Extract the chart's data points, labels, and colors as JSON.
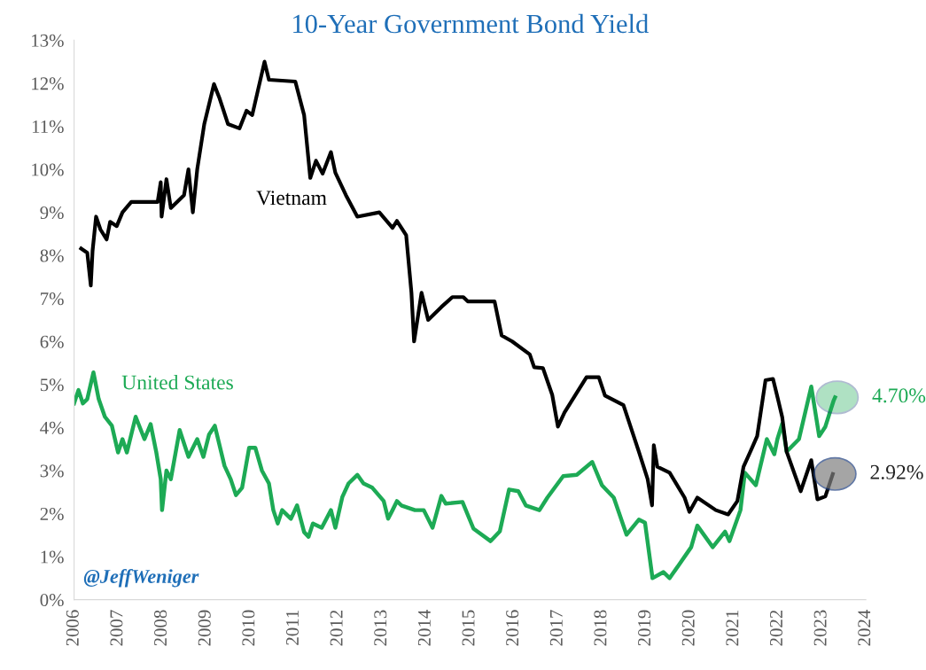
{
  "chart_data": {
    "type": "line",
    "title": "10-Year Government Bond Yield",
    "xlim": [
      2006,
      2024
    ],
    "xticks": [
      2006,
      2007,
      2008,
      2009,
      2010,
      2011,
      2012,
      2013,
      2014,
      2015,
      2016,
      2017,
      2018,
      2019,
      2020,
      2021,
      2022,
      2023,
      2024
    ],
    "ylim": [
      0,
      13
    ],
    "yticks": [
      {
        "value": 0,
        "label": "0%"
      },
      {
        "value": 1,
        "label": "1%"
      },
      {
        "value": 2,
        "label": "2%"
      },
      {
        "value": 3,
        "label": "3%"
      },
      {
        "value": 4,
        "label": "4%"
      },
      {
        "value": 5,
        "label": "5%"
      },
      {
        "value": 6,
        "label": "6%"
      },
      {
        "value": 7,
        "label": "7%"
      },
      {
        "value": 8,
        "label": "8%"
      },
      {
        "value": 9,
        "label": "9%"
      },
      {
        "value": 10,
        "label": "10%"
      },
      {
        "value": 11,
        "label": "11%"
      },
      {
        "value": 12,
        "label": "12%"
      },
      {
        "value": 13,
        "label": "13%"
      }
    ],
    "grid": false,
    "legend": false,
    "marker": "none",
    "line_style": "solid",
    "series": [
      {
        "name": "Vietnam",
        "color": "#000000",
        "x": [
          2006.16,
          2006.3,
          2006.38,
          2006.42,
          2006.5,
          2006.6,
          2006.74,
          2006.82,
          2006.97,
          2007.1,
          2007.3,
          2007.9,
          2007.97,
          2007.99,
          2008.1,
          2008.2,
          2008.5,
          2008.6,
          2008.7,
          2008.8,
          2008.96,
          2009.18,
          2009.3,
          2009.5,
          2009.76,
          2009.92,
          2010.05,
          2010.33,
          2010.43,
          2011.03,
          2011.23,
          2011.37,
          2011.5,
          2011.65,
          2011.84,
          2011.94,
          2012.18,
          2012.44,
          2012.94,
          2013.24,
          2013.34,
          2013.55,
          2013.67,
          2013.73,
          2013.9,
          2014.05,
          2014.35,
          2014.6,
          2014.85,
          2014.95,
          2015.56,
          2015.72,
          2015.96,
          2016.36,
          2016.46,
          2016.66,
          2016.87,
          2017.0,
          2017.15,
          2017.65,
          2017.93,
          2018.07,
          2018.49,
          2018.84,
          2019.04,
          2019.14,
          2019.18,
          2019.26,
          2019.54,
          2019.88,
          2019.99,
          2020.17,
          2020.59,
          2020.87,
          2021.08,
          2021.22,
          2021.35,
          2021.53,
          2021.72,
          2021.89,
          2022.0,
          2022.1,
          2022.2,
          2022.52,
          2022.76,
          2022.9,
          2023.08,
          2023.25
        ],
        "values": [
          8.16,
          8.06,
          7.3,
          8.1,
          8.9,
          8.6,
          8.37,
          8.78,
          8.68,
          9.0,
          9.24,
          9.24,
          9.7,
          8.9,
          9.77,
          9.1,
          9.4,
          10.0,
          9.0,
          10.0,
          11.05,
          11.98,
          11.67,
          11.05,
          10.95,
          11.36,
          11.26,
          12.5,
          12.08,
          12.04,
          11.26,
          9.8,
          10.2,
          9.9,
          10.4,
          9.92,
          9.4,
          8.9,
          9.0,
          8.64,
          8.8,
          8.47,
          7.13,
          6.0,
          7.13,
          6.5,
          6.8,
          7.03,
          7.03,
          6.93,
          6.93,
          6.14,
          6.0,
          5.7,
          5.4,
          5.38,
          4.76,
          4.02,
          4.35,
          5.17,
          5.17,
          4.74,
          4.52,
          3.44,
          2.8,
          2.19,
          3.59,
          3.09,
          2.95,
          2.37,
          2.04,
          2.37,
          2.08,
          1.98,
          2.29,
          3.09,
          3.38,
          3.8,
          5.1,
          5.13,
          4.67,
          4.24,
          3.44,
          2.52,
          3.24,
          2.33,
          2.4,
          2.92
        ]
      },
      {
        "name": "United States",
        "color": "#1daa55",
        "x": [
          2006.0,
          2006.1,
          2006.2,
          2006.3,
          2006.44,
          2006.56,
          2006.7,
          2006.86,
          2007.0,
          2007.1,
          2007.2,
          2007.4,
          2007.6,
          2007.74,
          2007.87,
          2007.97,
          2008.0,
          2008.1,
          2008.2,
          2008.4,
          2008.6,
          2008.8,
          2008.94,
          2009.07,
          2009.2,
          2009.42,
          2009.56,
          2009.68,
          2009.82,
          2009.98,
          2010.12,
          2010.27,
          2010.43,
          2010.53,
          2010.63,
          2010.73,
          2010.93,
          2011.07,
          2011.23,
          2011.33,
          2011.43,
          2011.63,
          2011.84,
          2011.94,
          2012.1,
          2012.24,
          2012.44,
          2012.58,
          2012.78,
          2013.04,
          2013.14,
          2013.24,
          2013.34,
          2013.44,
          2013.75,
          2013.95,
          2014.15,
          2014.35,
          2014.45,
          2014.83,
          2015.08,
          2015.47,
          2015.68,
          2015.89,
          2016.1,
          2016.27,
          2016.58,
          2016.76,
          2017.12,
          2017.43,
          2017.78,
          2018.0,
          2018.27,
          2018.56,
          2018.84,
          2018.98,
          2019.15,
          2019.4,
          2019.54,
          2020.03,
          2020.17,
          2020.52,
          2020.8,
          2020.9,
          2021.15,
          2021.25,
          2021.5,
          2021.75,
          2021.92,
          2021.99,
          2022.1,
          2022.2,
          2022.48,
          2022.76,
          2022.94,
          2023.08,
          2023.27,
          2023.3
        ],
        "values": [
          4.56,
          4.87,
          4.56,
          4.66,
          5.28,
          4.66,
          4.25,
          4.04,
          3.42,
          3.73,
          3.42,
          4.25,
          3.73,
          4.08,
          3.42,
          2.8,
          2.08,
          3.0,
          2.8,
          3.94,
          3.32,
          3.73,
          3.32,
          3.84,
          4.04,
          3.11,
          2.8,
          2.43,
          2.6,
          3.53,
          3.53,
          3.0,
          2.7,
          2.08,
          1.77,
          2.08,
          1.88,
          2.19,
          1.57,
          1.46,
          1.77,
          1.67,
          2.08,
          1.67,
          2.39,
          2.7,
          2.9,
          2.7,
          2.6,
          2.29,
          1.88,
          2.08,
          2.29,
          2.19,
          2.08,
          2.08,
          1.67,
          2.41,
          2.23,
          2.27,
          1.65,
          1.36,
          1.59,
          2.56,
          2.52,
          2.19,
          2.08,
          2.37,
          2.87,
          2.9,
          3.2,
          2.66,
          2.37,
          1.51,
          1.86,
          1.79,
          0.5,
          0.64,
          0.5,
          1.22,
          1.72,
          1.22,
          1.58,
          1.36,
          2.08,
          2.95,
          2.66,
          3.73,
          3.38,
          3.73,
          4.09,
          3.44,
          3.73,
          4.95,
          3.8,
          4.02,
          4.63,
          4.7
        ]
      }
    ],
    "annotations": [
      {
        "text": "4.70%",
        "x": 2023.3,
        "y": 4.7
      },
      {
        "text": "2.92%",
        "x": 2023.25,
        "y": 2.92
      },
      "@JeffWeniger"
    ]
  }
}
